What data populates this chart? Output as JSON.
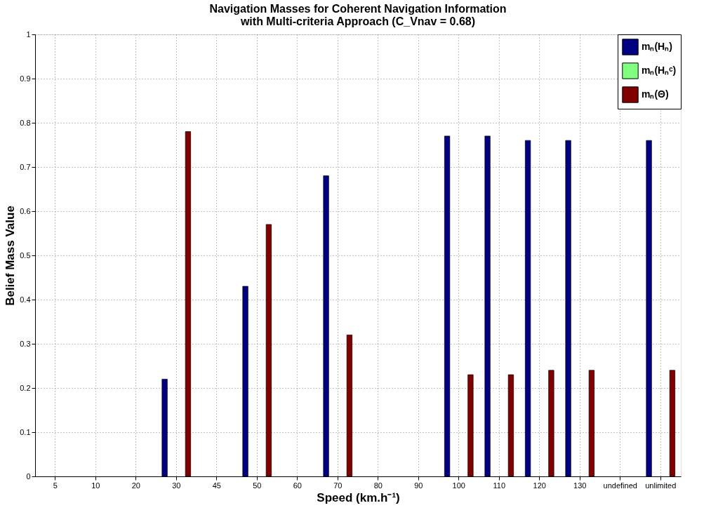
{
  "chart_data": {
    "type": "bar",
    "title": "Navigation Masses for Coherent Navigation Information",
    "subtitle": "with Multi-criteria Approach (C_Vnav = 0.68)",
    "xlabel": "Speed (km.h⁻¹)",
    "ylabel": "Belief Mass Value",
    "categories": [
      "5",
      "10",
      "20",
      "30",
      "45",
      "50",
      "60",
      "70",
      "80",
      "90",
      "100",
      "110",
      "120",
      "130",
      "undefined",
      "unlimited"
    ],
    "series": [
      {
        "name": "mₙ(Hₙ)",
        "color": "#000080",
        "values": [
          null,
          null,
          null,
          0.22,
          null,
          0.43,
          null,
          0.68,
          null,
          null,
          0.77,
          0.77,
          0.76,
          0.76,
          null,
          0.76
        ]
      },
      {
        "name": "mₙ(Hₙᶜ)",
        "color": "#80ff80",
        "values": [
          null,
          null,
          null,
          null,
          null,
          null,
          null,
          null,
          null,
          null,
          null,
          null,
          null,
          null,
          null,
          null
        ]
      },
      {
        "name": "mₙ(Θ)",
        "color": "#800000",
        "values": [
          null,
          null,
          null,
          0.78,
          null,
          0.57,
          null,
          0.32,
          null,
          null,
          0.23,
          0.23,
          0.24,
          0.24,
          null,
          0.24
        ]
      }
    ],
    "ylim": [
      0,
      1
    ],
    "yticks": [
      0,
      0.1,
      0.2,
      0.3,
      0.4,
      0.5,
      0.6,
      0.7,
      0.8,
      0.9,
      1
    ],
    "grid": true,
    "legend": "top right"
  }
}
